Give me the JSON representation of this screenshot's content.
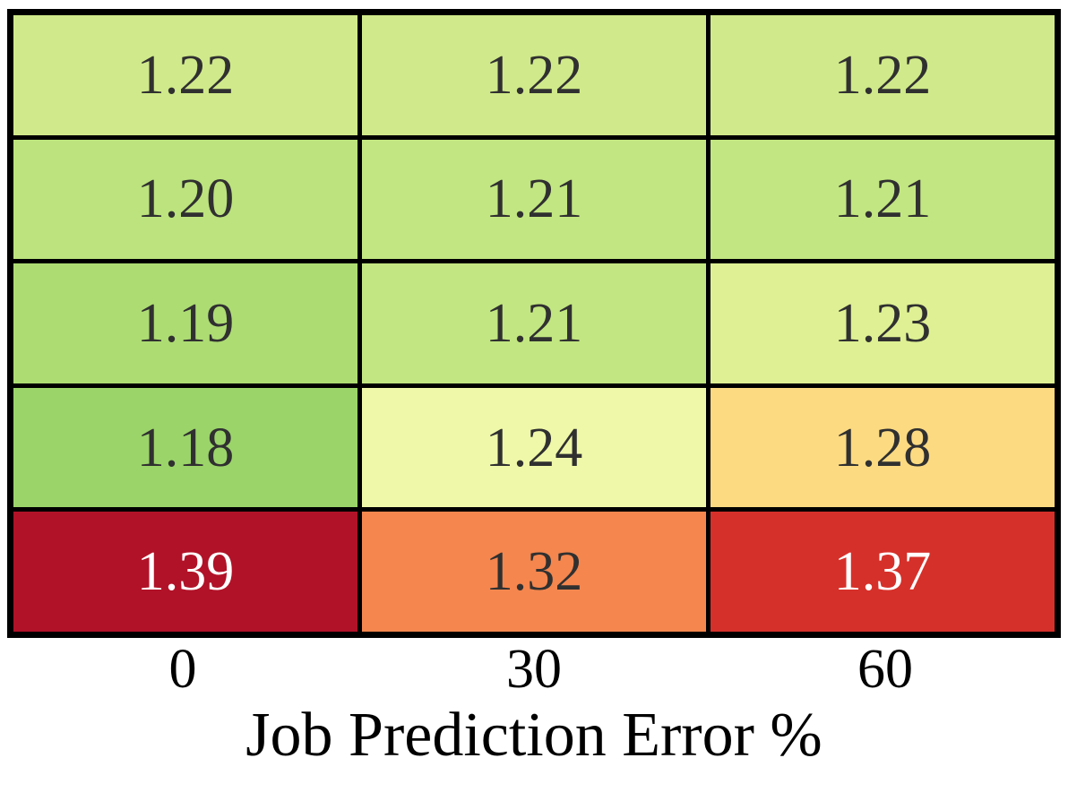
{
  "figure": {
    "background": "#ffffff",
    "grid_border_color": "#000000",
    "dark_text_color": "#303030",
    "light_text_color": "#ffffff",
    "axis_text_color": "#000000"
  },
  "chart_data": {
    "type": "heatmap",
    "title": "",
    "xlabel": "Job Prediction Error %",
    "ylabel": "",
    "x_tick_labels": [
      "0",
      "30",
      "60"
    ],
    "x_values": [
      0,
      30,
      60
    ],
    "grid": "thick black cell borders, no colorbar, no y-axis labels",
    "legend_position": "none",
    "colormap": "RdYlGn reversed (low=green, high=red), approx range 1.18-1.39",
    "values": [
      [
        1.22,
        1.22,
        1.22
      ],
      [
        1.2,
        1.21,
        1.21
      ],
      [
        1.19,
        1.21,
        1.23
      ],
      [
        1.18,
        1.24,
        1.28
      ],
      [
        1.39,
        1.32,
        1.37
      ]
    ],
    "rows": [
      {
        "cells": [
          {
            "label": "1.22",
            "value": 1.22,
            "bg": "#d0e98a",
            "fg": "#303030"
          },
          {
            "label": "1.22",
            "value": 1.22,
            "bg": "#d0e98a",
            "fg": "#303030"
          },
          {
            "label": "1.22",
            "value": 1.22,
            "bg": "#d0e98a",
            "fg": "#303030"
          }
        ]
      },
      {
        "cells": [
          {
            "label": "1.20",
            "value": 1.2,
            "bg": "#bce37d",
            "fg": "#303030"
          },
          {
            "label": "1.21",
            "value": 1.21,
            "bg": "#c2e681",
            "fg": "#303030"
          },
          {
            "label": "1.21",
            "value": 1.21,
            "bg": "#c2e681",
            "fg": "#303030"
          }
        ]
      },
      {
        "cells": [
          {
            "label": "1.19",
            "value": 1.19,
            "bg": "#addc73",
            "fg": "#303030"
          },
          {
            "label": "1.21",
            "value": 1.21,
            "bg": "#c2e681",
            "fg": "#303030"
          },
          {
            "label": "1.23",
            "value": 1.23,
            "bg": "#def093",
            "fg": "#303030"
          }
        ]
      },
      {
        "cells": [
          {
            "label": "1.18",
            "value": 1.18,
            "bg": "#9bd469",
            "fg": "#303030"
          },
          {
            "label": "1.24",
            "value": 1.24,
            "bg": "#eff8a8",
            "fg": "#303030"
          },
          {
            "label": "1.28",
            "value": 1.28,
            "bg": "#fcda81",
            "fg": "#303030"
          }
        ]
      },
      {
        "cells": [
          {
            "label": "1.39",
            "value": 1.39,
            "bg": "#b11228",
            "fg": "#ffffff"
          },
          {
            "label": "1.32",
            "value": 1.32,
            "bg": "#f4864e",
            "fg": "#303030"
          },
          {
            "label": "1.37",
            "value": 1.37,
            "bg": "#d6302a",
            "fg": "#ffffff"
          }
        ]
      }
    ]
  }
}
